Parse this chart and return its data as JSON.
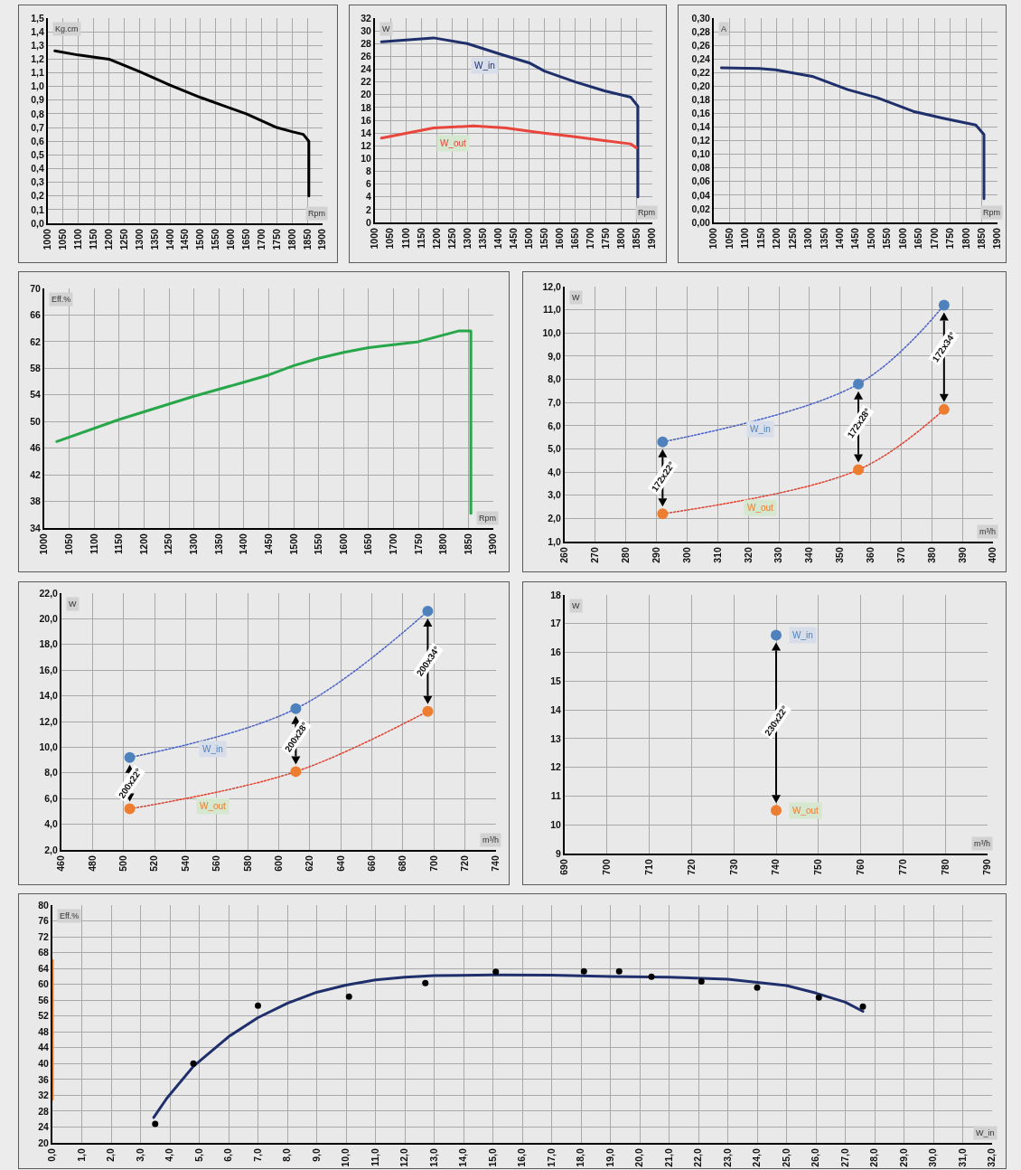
{
  "chart_data": [
    {
      "type": "line",
      "ylabel": "Kg.cm",
      "xlabel": "Rpm",
      "grid": true,
      "xlim": [
        1000,
        1900
      ],
      "xticks": [
        1000,
        1050,
        1100,
        1150,
        1200,
        1250,
        1300,
        1350,
        1400,
        1450,
        1500,
        1550,
        1600,
        1650,
        1700,
        1750,
        1800,
        1850,
        1900
      ],
      "ylim": [
        0,
        1.5
      ],
      "yticks": [
        {
          "value": 0,
          "label": "0,0"
        },
        {
          "value": 0.1,
          "label": "0,1"
        },
        {
          "value": 0.2,
          "label": "0,2"
        },
        {
          "value": 0.3,
          "label": "0,3"
        },
        {
          "value": 0.4,
          "label": "0,4"
        },
        {
          "value": 0.5,
          "label": "0,5"
        },
        {
          "value": 0.6,
          "label": "0,6"
        },
        {
          "value": 0.7,
          "label": "0,7"
        },
        {
          "value": 0.8,
          "label": "0,8"
        },
        {
          "value": 0.9,
          "label": "0,9"
        },
        {
          "value": 1.0,
          "label": "1,0"
        },
        {
          "value": 1.1,
          "label": "1,1"
        },
        {
          "value": 1.2,
          "label": "1,2"
        },
        {
          "value": 1.3,
          "label": "1,3"
        },
        {
          "value": 1.4,
          "label": "1,4"
        },
        {
          "value": 1.5,
          "label": "1,5"
        }
      ],
      "series": [
        {
          "color": "#000000",
          "x": [
            1023,
            1100,
            1200,
            1300,
            1400,
            1500,
            1600,
            1650,
            1750,
            1800,
            1837,
            1855,
            1855
          ],
          "values": [
            1.26,
            1.23,
            1.2,
            1.11,
            1.01,
            0.92,
            0.84,
            0.8,
            0.7,
            0.67,
            0.65,
            0.6,
            0.2
          ]
        }
      ]
    },
    {
      "type": "line",
      "ylabel": "W",
      "xlabel": "Rpm",
      "grid": true,
      "xlim": [
        1000,
        1900
      ],
      "xticks": [
        1000,
        1050,
        1100,
        1150,
        1200,
        1250,
        1300,
        1350,
        1400,
        1450,
        1500,
        1550,
        1600,
        1650,
        1700,
        1750,
        1800,
        1850,
        1900
      ],
      "ylim": [
        0,
        32
      ],
      "yticks": [
        0,
        2,
        4,
        6,
        8,
        10,
        12,
        14,
        16,
        18,
        20,
        22,
        24,
        26,
        28,
        30,
        32
      ],
      "series": [
        {
          "name": "W_in",
          "color": "#1f2f6b",
          "x": [
            1021,
            1190,
            1300,
            1410,
            1500,
            1550,
            1650,
            1745,
            1830,
            1853,
            1853
          ],
          "values": [
            28.3,
            28.9,
            28.0,
            26.3,
            25.0,
            23.7,
            22.0,
            20.6,
            19.6,
            18.2,
            4.0
          ]
        },
        {
          "name": "W_out",
          "color": "#e8453c",
          "x": [
            1021,
            1190,
            1320,
            1424,
            1531,
            1637,
            1744,
            1829,
            1848
          ],
          "values": [
            13.2,
            14.8,
            15.1,
            14.8,
            14.1,
            13.5,
            12.8,
            12.3,
            11.7
          ]
        }
      ]
    },
    {
      "type": "line",
      "ylabel": "A",
      "xlabel": "Rpm",
      "grid": true,
      "xlim": [
        1000,
        1900
      ],
      "xticks": [
        1000,
        1050,
        1100,
        1150,
        1200,
        1250,
        1300,
        1350,
        1400,
        1450,
        1500,
        1550,
        1600,
        1650,
        1700,
        1750,
        1800,
        1850,
        1900
      ],
      "ylim": [
        0,
        0.3
      ],
      "yticks": [
        {
          "value": 0,
          "label": "0,00"
        },
        {
          "value": 0.02,
          "label": "0,02"
        },
        {
          "value": 0.04,
          "label": "0,04"
        },
        {
          "value": 0.06,
          "label": "0,06"
        },
        {
          "value": 0.08,
          "label": "0,08"
        },
        {
          "value": 0.1,
          "label": "0,10"
        },
        {
          "value": 0.12,
          "label": "0,12"
        },
        {
          "value": 0.14,
          "label": "0,14"
        },
        {
          "value": 0.16,
          "label": "0,16"
        },
        {
          "value": 0.18,
          "label": "0,18"
        },
        {
          "value": 0.2,
          "label": "0,20"
        },
        {
          "value": 0.22,
          "label": "0,22"
        },
        {
          "value": 0.24,
          "label": "0,24"
        },
        {
          "value": 0.26,
          "label": "0,26"
        },
        {
          "value": 0.28,
          "label": "0,28"
        },
        {
          "value": 0.3,
          "label": "0,30"
        }
      ],
      "series": [
        {
          "color": "#1f2f6b",
          "x": [
            1024,
            1144,
            1196,
            1316,
            1425,
            1519,
            1633,
            1727,
            1831,
            1857,
            1857
          ],
          "values": [
            0.227,
            0.226,
            0.224,
            0.214,
            0.195,
            0.183,
            0.163,
            0.153,
            0.143,
            0.129,
            0.035
          ]
        }
      ]
    },
    {
      "type": "line",
      "ylabel": "Eff.%",
      "xlabel": "Rpm",
      "grid": true,
      "xlim": [
        1000,
        1900
      ],
      "xticks": [
        1000,
        1050,
        1100,
        1150,
        1200,
        1250,
        1300,
        1350,
        1400,
        1450,
        1500,
        1550,
        1600,
        1650,
        1700,
        1750,
        1800,
        1850,
        1900
      ],
      "ylim": [
        34,
        70
      ],
      "yticks": [
        34,
        38,
        42,
        46,
        50,
        54,
        58,
        62,
        66,
        70
      ],
      "series": [
        {
          "color": "#27a74a",
          "x": [
            1025,
            1150,
            1300,
            1400,
            1450,
            1500,
            1550,
            1600,
            1650,
            1750,
            1830,
            1855,
            1855
          ],
          "values": [
            47.0,
            50.3,
            53.8,
            55.9,
            57.0,
            58.4,
            59.5,
            60.4,
            61.1,
            62.0,
            63.6,
            63.6,
            36.2
          ]
        }
      ]
    },
    {
      "type": "scatter",
      "ylabel": "W",
      "xlabel": "m³/h",
      "grid": true,
      "xlim": [
        260,
        400
      ],
      "xticks": [
        260,
        270,
        280,
        290,
        300,
        310,
        320,
        330,
        340,
        350,
        360,
        370,
        380,
        390,
        400
      ],
      "ylim": [
        1,
        12
      ],
      "yticks": [
        {
          "value": 1,
          "label": "1,0"
        },
        {
          "value": 2,
          "label": "2,0"
        },
        {
          "value": 3,
          "label": "3,0"
        },
        {
          "value": 4,
          "label": "4,0"
        },
        {
          "value": 5,
          "label": "5,0"
        },
        {
          "value": 6,
          "label": "6,0"
        },
        {
          "value": 7,
          "label": "7,0"
        },
        {
          "value": 8,
          "label": "8,0"
        },
        {
          "value": 9,
          "label": "9,0"
        },
        {
          "value": 10,
          "label": "10,0"
        },
        {
          "value": 11,
          "label": "11,0"
        },
        {
          "value": 12,
          "label": "12,0"
        }
      ],
      "x": [
        292,
        356,
        384
      ],
      "series": [
        {
          "type": "line",
          "line_style": "dotted",
          "color": "#4a62c6",
          "values": [
            5.3,
            7.8,
            11.2
          ]
        },
        {
          "type": "line",
          "line_style": "dotted",
          "color": "#e0412f",
          "values": [
            2.2,
            4.1,
            6.7
          ]
        },
        {
          "name": "W_in",
          "marker": "circle",
          "color": "#4f81bd",
          "values": [
            5.3,
            7.8,
            11.2
          ]
        },
        {
          "name": "W_out",
          "marker": "circle",
          "color": "#ed7d31",
          "values": [
            2.2,
            4.1,
            6.7
          ]
        }
      ],
      "annotations": [
        {
          "text": "172x22°",
          "x": 292,
          "y": 3.8
        },
        {
          "text": "172x28°",
          "x": 356,
          "y": 6.1
        },
        {
          "text": "172x34°",
          "x": 384,
          "y": 9.4
        }
      ]
    },
    {
      "type": "scatter",
      "ylabel": "W",
      "xlabel": "m³/h",
      "grid": true,
      "xlim": [
        460,
        740
      ],
      "xticks": [
        460,
        480,
        500,
        520,
        540,
        560,
        580,
        600,
        620,
        640,
        660,
        680,
        700,
        720,
        740
      ],
      "ylim": [
        2,
        22
      ],
      "yticks": [
        {
          "value": 2,
          "label": "2,0"
        },
        {
          "value": 4,
          "label": "4,0"
        },
        {
          "value": 6,
          "label": "6,0"
        },
        {
          "value": 8,
          "label": "8,0"
        },
        {
          "value": 10,
          "label": "10,0"
        },
        {
          "value": 12,
          "label": "12,0"
        },
        {
          "value": 14,
          "label": "14,0"
        },
        {
          "value": 16,
          "label": "16,0"
        },
        {
          "value": 18,
          "label": "18,0"
        },
        {
          "value": 20,
          "label": "20,0"
        },
        {
          "value": 22,
          "label": "22,0"
        }
      ],
      "x": [
        504,
        611,
        696
      ],
      "series": [
        {
          "type": "line",
          "line_style": "dotted",
          "color": "#4a62c6",
          "values": [
            9.2,
            13.0,
            20.6
          ]
        },
        {
          "type": "line",
          "line_style": "dotted",
          "color": "#e0412f",
          "values": [
            5.2,
            8.1,
            12.8
          ]
        },
        {
          "name": "W_in",
          "marker": "circle",
          "color": "#4f81bd",
          "values": [
            9.2,
            13.0,
            20.6
          ]
        },
        {
          "name": "W_out",
          "marker": "circle",
          "color": "#ed7d31",
          "values": [
            5.2,
            8.1,
            12.8
          ]
        }
      ],
      "annotations": [
        {
          "text": "200x22°",
          "x": 504,
          "y": 7.2
        },
        {
          "text": "200x28°",
          "x": 611,
          "y": 10.8
        },
        {
          "text": "200x34°",
          "x": 696,
          "y": 16.7
        }
      ]
    },
    {
      "type": "scatter",
      "ylabel": "W",
      "xlabel": "m³/h",
      "grid": true,
      "xlim": [
        690,
        790
      ],
      "xticks": [
        690,
        700,
        710,
        720,
        730,
        740,
        750,
        760,
        770,
        780,
        790
      ],
      "ylim": [
        9,
        18
      ],
      "yticks": [
        9,
        10,
        11,
        12,
        13,
        14,
        15,
        16,
        17,
        18
      ],
      "x": [
        740
      ],
      "series": [
        {
          "name": "W_in",
          "marker": "circle",
          "color": "#4f81bd",
          "values": [
            16.6
          ]
        },
        {
          "name": "W_out",
          "marker": "circle",
          "color": "#ed7d31",
          "values": [
            10.5
          ]
        }
      ],
      "annotations": [
        {
          "text": "230x22°",
          "x": 740,
          "y": 13.6
        }
      ]
    },
    {
      "type": "scatter",
      "ylabel": "Eff.%",
      "xlabel": "W_in",
      "grid": true,
      "xlim": [
        0,
        32
      ],
      "xticks": [
        {
          "value": 0,
          "label": "0,0"
        },
        {
          "value": 1,
          "label": "1,0"
        },
        {
          "value": 2,
          "label": "2,0"
        },
        {
          "value": 3,
          "label": "3,0"
        },
        {
          "value": 4,
          "label": "4,0"
        },
        {
          "value": 5,
          "label": "5,0"
        },
        {
          "value": 6,
          "label": "6,0"
        },
        {
          "value": 7,
          "label": "7,0"
        },
        {
          "value": 8,
          "label": "8,0"
        },
        {
          "value": 9,
          "label": "9,0"
        },
        {
          "value": 10,
          "label": "10,0"
        },
        {
          "value": 11,
          "label": "11,0"
        },
        {
          "value": 12,
          "label": "12,0"
        },
        {
          "value": 13,
          "label": "13,0"
        },
        {
          "value": 14,
          "label": "14,0"
        },
        {
          "value": 15,
          "label": "15,0"
        },
        {
          "value": 16,
          "label": "16,0"
        },
        {
          "value": 17,
          "label": "17,0"
        },
        {
          "value": 18,
          "label": "18,0"
        },
        {
          "value": 19,
          "label": "19,0"
        },
        {
          "value": 20,
          "label": "20,0"
        },
        {
          "value": 21,
          "label": "21,0"
        },
        {
          "value": 22,
          "label": "22,0"
        },
        {
          "value": 23,
          "label": "23,0"
        },
        {
          "value": 24,
          "label": "24,0"
        },
        {
          "value": 25,
          "label": "25,0"
        },
        {
          "value": 26,
          "label": "26,0"
        },
        {
          "value": 27,
          "label": "27,0"
        },
        {
          "value": 28,
          "label": "28,0"
        },
        {
          "value": 29,
          "label": "29,0"
        },
        {
          "value": 30,
          "label": "30,0"
        },
        {
          "value": 31,
          "label": "31,0"
        },
        {
          "value": 32,
          "label": "32,0"
        }
      ],
      "ylim": [
        20,
        80
      ],
      "yticks": [
        20,
        24,
        28,
        32,
        36,
        40,
        44,
        48,
        52,
        56,
        60,
        64,
        68,
        72,
        76,
        80
      ],
      "series": [
        {
          "type": "line",
          "color": "#e8893b",
          "x": [
            0,
            0
          ],
          "values": [
            31,
            66
          ]
        },
        {
          "type": "line",
          "color": "#1f2f6b",
          "x": [
            3.45,
            3.9,
            4.8,
            6.0,
            7.0,
            8.0,
            9.0,
            10.0,
            11.0,
            12.0,
            13.0,
            15.0,
            17.0,
            19.0,
            21.0,
            23.0,
            24.0,
            25.0,
            26.0,
            27.0,
            27.6
          ],
          "values": [
            26.4,
            31.3,
            39.3,
            46.8,
            51.6,
            55.2,
            58.0,
            59.8,
            61.1,
            61.8,
            62.2,
            62.4,
            62.3,
            62.0,
            61.8,
            61.3,
            60.5,
            59.7,
            57.8,
            55.5,
            53.2
          ]
        },
        {
          "marker": "circle",
          "color": "#000000",
          "x": [
            3.5,
            4.8,
            7.0,
            10.1,
            12.7,
            15.1,
            18.1,
            19.3,
            20.4,
            22.1,
            24.0,
            26.1,
            27.6
          ],
          "values": [
            24.8,
            40.0,
            54.6,
            56.9,
            60.3,
            63.2,
            63.3,
            63.3,
            61.9,
            60.7,
            59.2,
            56.7,
            54.4
          ]
        }
      ]
    }
  ]
}
